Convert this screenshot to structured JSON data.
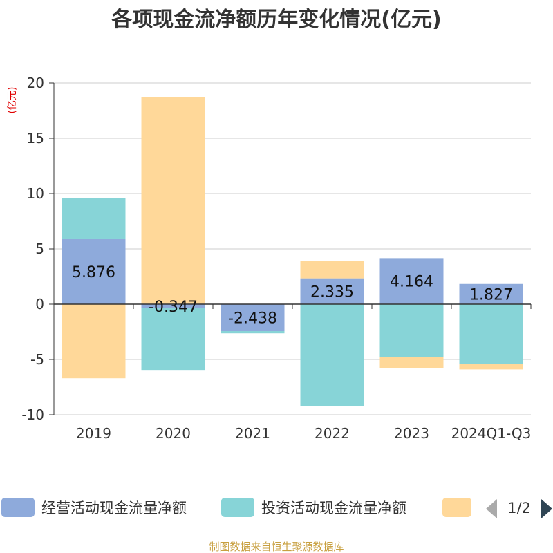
{
  "chart_data": {
    "type": "bar",
    "stacked": true,
    "title": "各项现金流净额历年变化情况(亿元)",
    "ylabel": "(亿元)",
    "categories": [
      "2019",
      "2020",
      "2021",
      "2022",
      "2023",
      "2024Q1-Q3"
    ],
    "ylim": [
      -10,
      20
    ],
    "yticks": [
      20,
      15,
      10,
      5,
      0,
      -5,
      -10
    ],
    "grid": true,
    "legend_position": "bottom",
    "series": [
      {
        "name": "经营活动现金流量净额",
        "color": "#8eaadb",
        "values": [
          5.876,
          -0.347,
          -2.438,
          2.335,
          4.164,
          1.827
        ]
      },
      {
        "name": "投资活动现金流量净额",
        "color": "#87d4d7",
        "values": [
          3.7,
          -5.6,
          -0.2,
          -9.2,
          -4.8,
          -5.4
        ]
      },
      {
        "name": "",
        "color": "#ffd899",
        "values": [
          -6.7,
          18.7,
          0,
          1.55,
          -1.0,
          -0.5
        ]
      }
    ],
    "data_labels": [
      "5.876",
      "-0.347",
      "-2.438",
      "2.335",
      "4.164",
      "1.827"
    ]
  },
  "legend": {
    "page": "1/2"
  },
  "source": "制图数据来自恒生聚源数据库"
}
